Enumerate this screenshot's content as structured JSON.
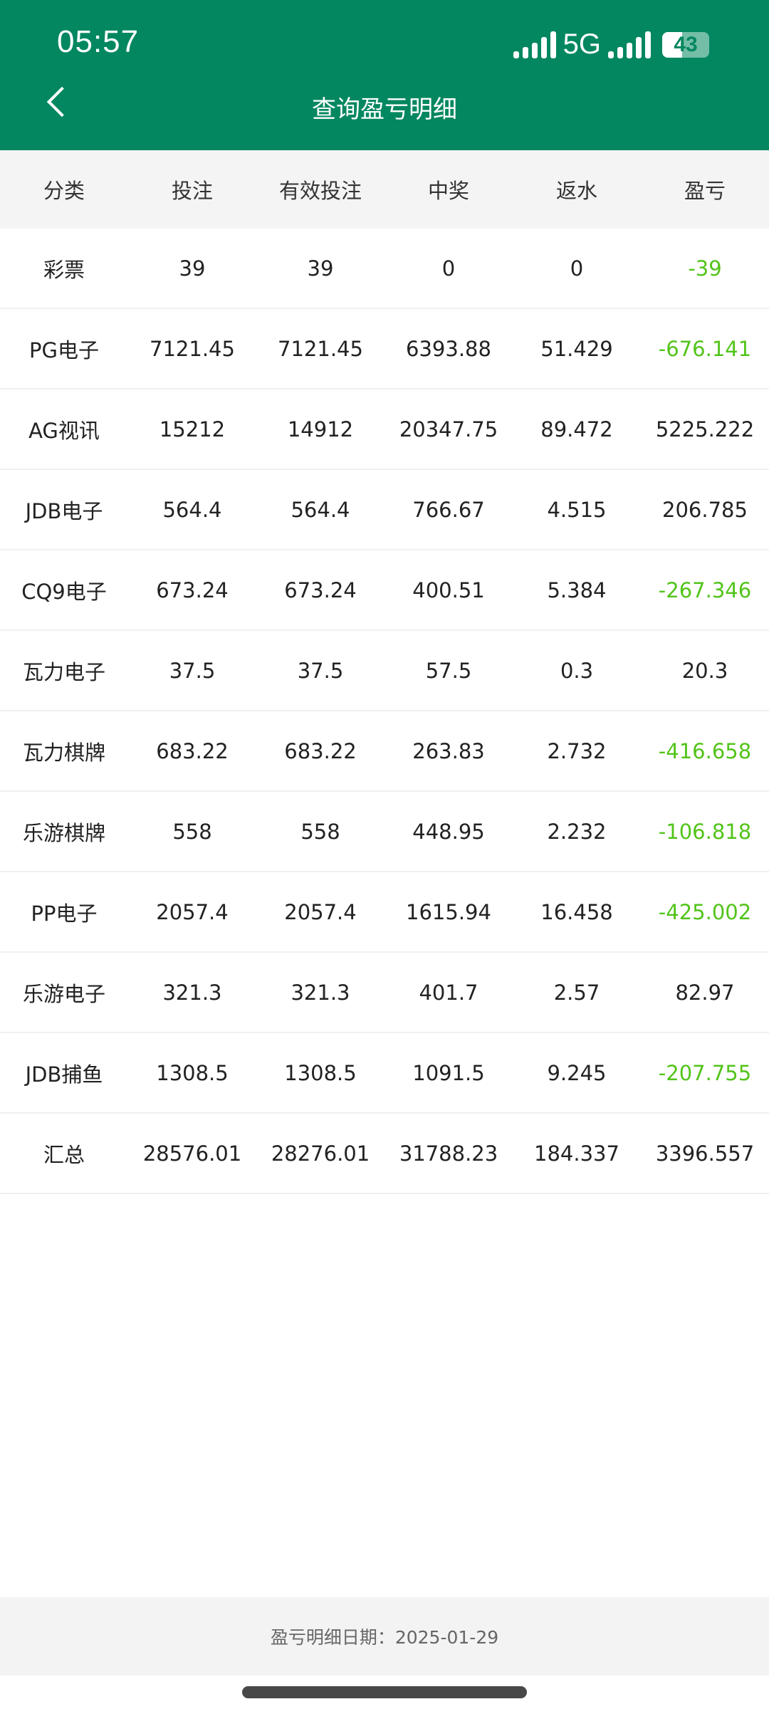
{
  "status_bar": {
    "time": "05:57",
    "network": "5G",
    "battery": "43",
    "battery_level_percent": 43
  },
  "header": {
    "title": "查询盈亏明细",
    "back_icon": "chevron-left-icon"
  },
  "colors": {
    "brand": "#028760",
    "negative": "#52c41a"
  },
  "table": {
    "columns": [
      "分类",
      "投注",
      "有效投注",
      "中奖",
      "返水",
      "盈亏"
    ],
    "rows": [
      [
        "彩票",
        "39",
        "39",
        "0",
        "0",
        "-39"
      ],
      [
        "PG电子",
        "7121.45",
        "7121.45",
        "6393.88",
        "51.429",
        "-676.141"
      ],
      [
        "AG视讯",
        "15212",
        "14912",
        "20347.75",
        "89.472",
        "5225.222"
      ],
      [
        "JDB电子",
        "564.4",
        "564.4",
        "766.67",
        "4.515",
        "206.785"
      ],
      [
        "CQ9电子",
        "673.24",
        "673.24",
        "400.51",
        "5.384",
        "-267.346"
      ],
      [
        "瓦力电子",
        "37.5",
        "37.5",
        "57.5",
        "0.3",
        "20.3"
      ],
      [
        "瓦力棋牌",
        "683.22",
        "683.22",
        "263.83",
        "2.732",
        "-416.658"
      ],
      [
        "乐游棋牌",
        "558",
        "558",
        "448.95",
        "2.232",
        "-106.818"
      ],
      [
        "PP电子",
        "2057.4",
        "2057.4",
        "1615.94",
        "16.458",
        "-425.002"
      ],
      [
        "乐游电子",
        "321.3",
        "321.3",
        "401.7",
        "2.57",
        "82.97"
      ],
      [
        "JDB捕鱼",
        "1308.5",
        "1308.5",
        "1091.5",
        "9.245",
        "-207.755"
      ],
      [
        "汇总",
        "28576.01",
        "28276.01",
        "31788.23",
        "184.337",
        "3396.557"
      ]
    ]
  },
  "footer": {
    "label": "盈亏明细日期：2025-01-29"
  }
}
